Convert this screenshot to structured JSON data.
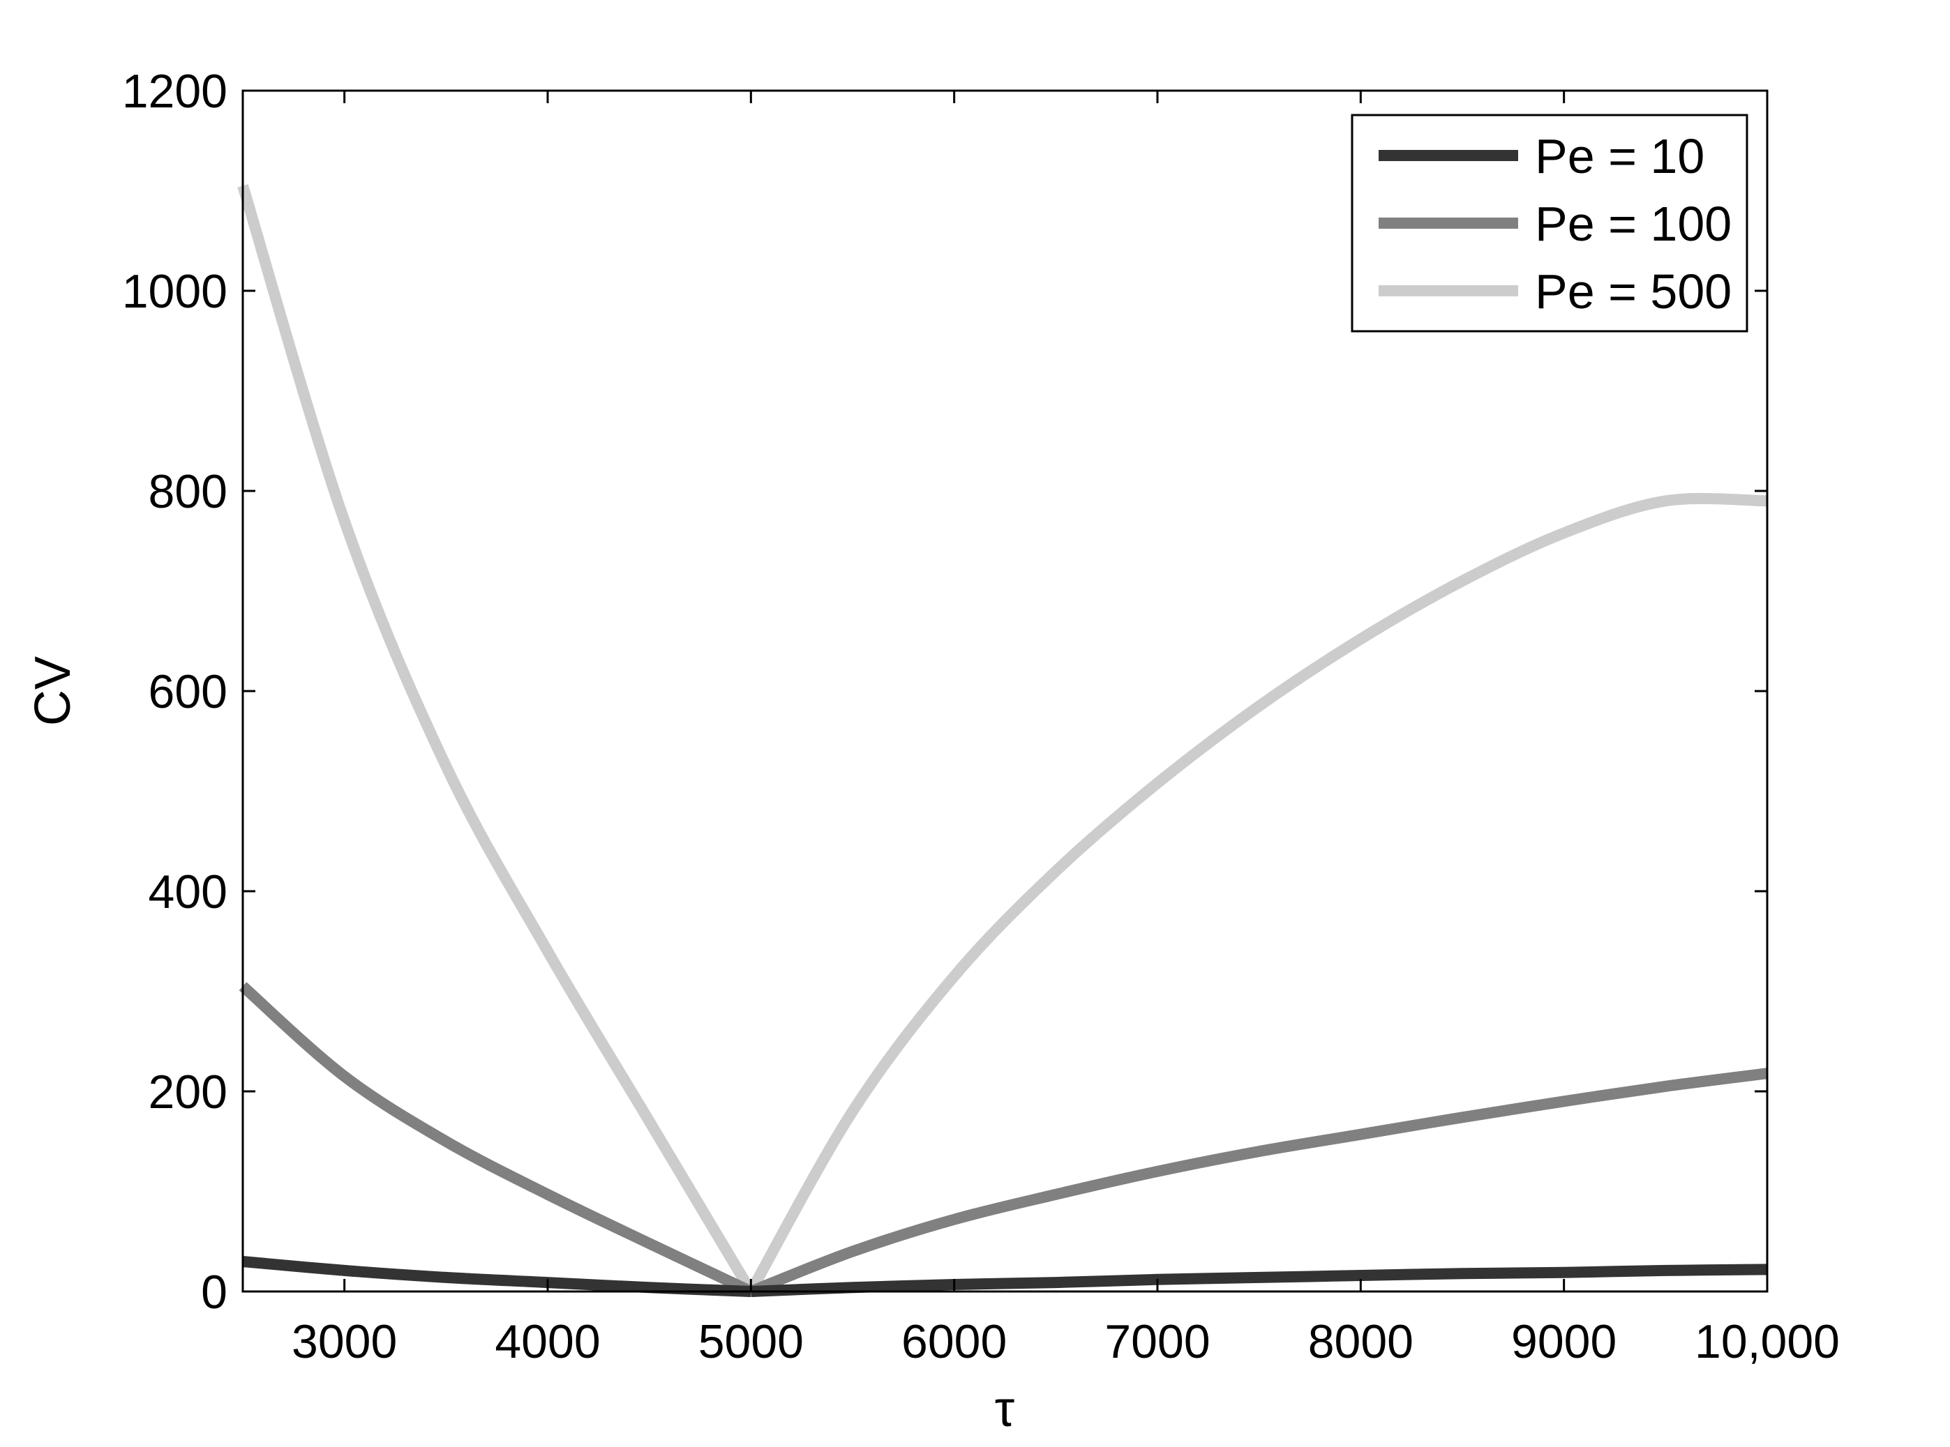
{
  "chart_data": {
    "type": "line",
    "xlabel": "τ",
    "ylabel": "CV",
    "xlim": [
      2500,
      10000
    ],
    "ylim": [
      0,
      1200
    ],
    "xticks": [
      3000,
      4000,
      5000,
      6000,
      7000,
      8000,
      9000,
      10000
    ],
    "xtick_labels": [
      "3000",
      "4000",
      "5000",
      "6000",
      "7000",
      "8000",
      "9000",
      "10,000"
    ],
    "yticks": [
      0,
      200,
      400,
      600,
      800,
      1000,
      1200
    ],
    "ytick_labels": [
      "0",
      "200",
      "400",
      "600",
      "800",
      "1000",
      "1200"
    ],
    "grid": false,
    "legend_position": "top-right",
    "x": [
      2500,
      3000,
      3500,
      4000,
      4500,
      5000,
      5500,
      6000,
      6500,
      7000,
      7500,
      8000,
      8500,
      9000,
      9500,
      10000
    ],
    "series": [
      {
        "name": "Pe = 10",
        "color": "#333333",
        "values": [
          30,
          21,
          14,
          9,
          4,
          0,
          4,
          7,
          9,
          12,
          14,
          16,
          18,
          19,
          21,
          22
        ]
      },
      {
        "name": "Pe = 100",
        "color": "#808080",
        "values": [
          305,
          215,
          150,
          97,
          48,
          0,
          40,
          72,
          97,
          120,
          140,
          157,
          174,
          190,
          205,
          218
        ]
      },
      {
        "name": "Pe = 500",
        "color": "#cccccc",
        "values": [
          1105,
          770,
          525,
          340,
          170,
          0,
          180,
          315,
          420,
          508,
          585,
          652,
          710,
          758,
          790,
          790
        ]
      }
    ]
  }
}
